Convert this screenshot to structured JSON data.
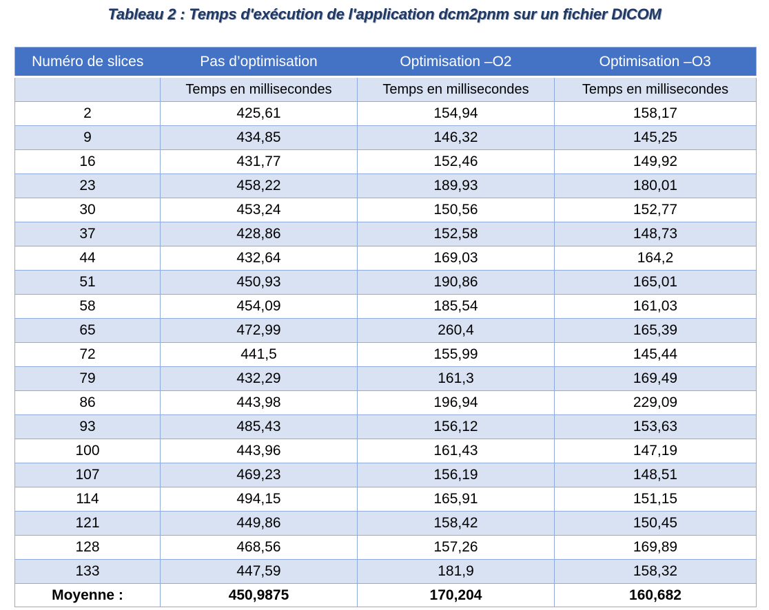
{
  "title": "Tableau 2 : Temps d'exécution de l'application dcm2pnm sur un fichier DICOM",
  "colors": {
    "title_text": "#1F3864",
    "header_bg": "#4472C4",
    "header_text": "#ffffff",
    "band_bg": "#D9E2F3",
    "grid_border": "#8EAADC"
  },
  "table": {
    "header": [
      "Numéro de slices",
      "Pas d’optimisation",
      "Optimisation –O2",
      "Optimisation –O3"
    ],
    "subheader": [
      "",
      "Temps en millisecondes",
      "Temps en millisecondes",
      "Temps en millisecondes"
    ],
    "rows": [
      [
        "2",
        "425,61",
        "154,94",
        "158,17"
      ],
      [
        "9",
        "434,85",
        "146,32",
        "145,25"
      ],
      [
        "16",
        "431,77",
        "152,46",
        "149,92"
      ],
      [
        "23",
        "458,22",
        "189,93",
        "180,01"
      ],
      [
        "30",
        "453,24",
        "150,56",
        "152,77"
      ],
      [
        "37",
        "428,86",
        "152,58",
        "148,73"
      ],
      [
        "44",
        "432,64",
        "169,03",
        "164,2"
      ],
      [
        "51",
        "450,93",
        "190,86",
        "165,01"
      ],
      [
        "58",
        "454,09",
        "185,54",
        "161,03"
      ],
      [
        "65",
        "472,99",
        "260,4",
        "165,39"
      ],
      [
        "72",
        "441,5",
        "155,99",
        "145,44"
      ],
      [
        "79",
        "432,29",
        "161,3",
        "169,49"
      ],
      [
        "86",
        "443,98",
        "196,94",
        "229,09"
      ],
      [
        "93",
        "485,43",
        "156,12",
        "153,63"
      ],
      [
        "100",
        "443,96",
        "161,43",
        "147,19"
      ],
      [
        "107",
        "469,23",
        "156,19",
        "148,51"
      ],
      [
        "114",
        "494,15",
        "165,91",
        "151,15"
      ],
      [
        "121",
        "449,86",
        "158,42",
        "150,45"
      ],
      [
        "128",
        "468,56",
        "157,26",
        "169,89"
      ],
      [
        "133",
        "447,59",
        "181,9",
        "158,32"
      ]
    ],
    "footer": [
      "Moyenne :",
      "450,9875",
      "170,204",
      "160,682"
    ]
  }
}
